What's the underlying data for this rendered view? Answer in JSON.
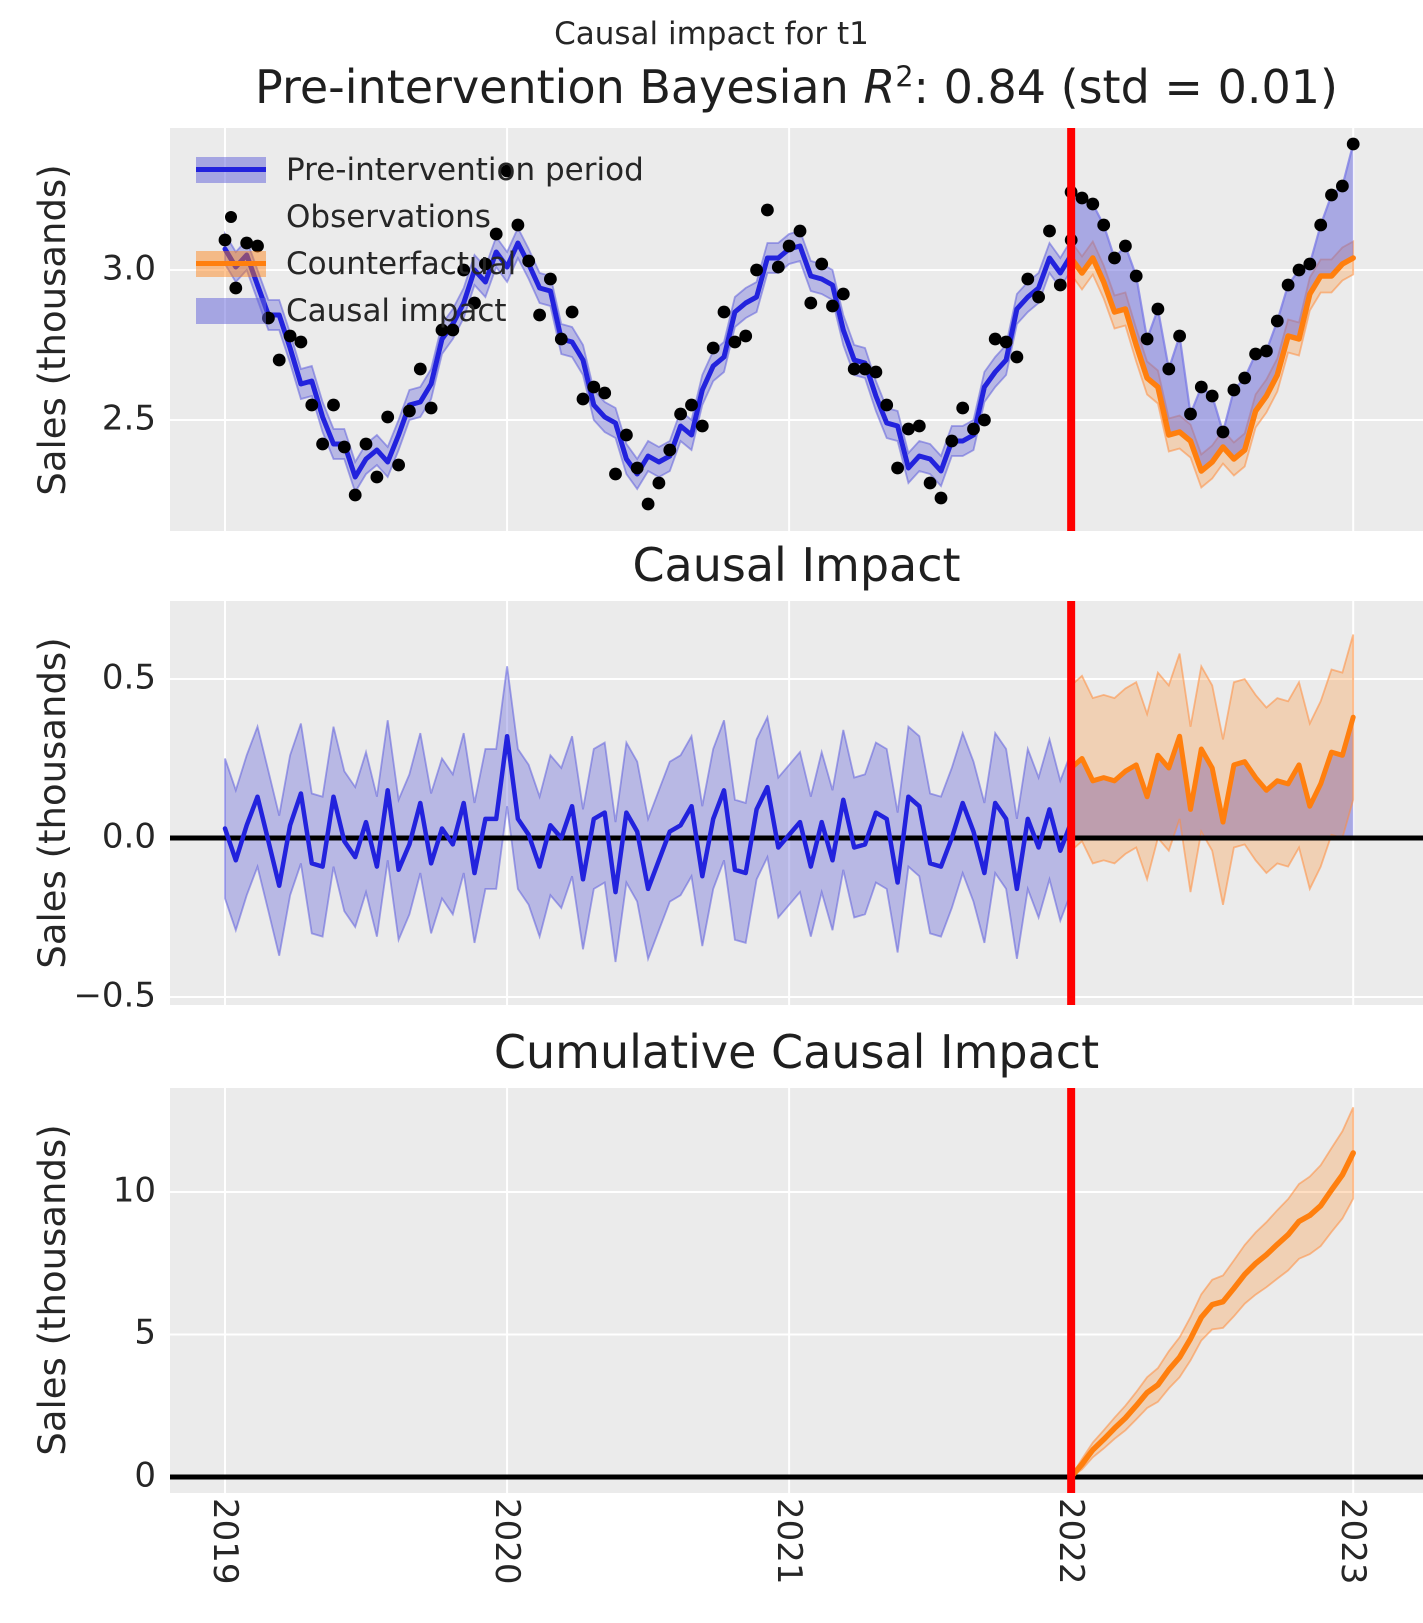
{
  "figure": {
    "suptitle": "Causal impact for t1",
    "title1": {
      "prefix": "Pre-intervention Bayesian ",
      "r_symbol": "R",
      "exponent": "2",
      "suffix": ": 0.84 (std = 0.01)"
    },
    "legend": {
      "items": [
        {
          "label": "Pre-intervention period",
          "type": "band-line",
          "color": "blue"
        },
        {
          "label": "Observations",
          "type": "dot",
          "color": "black"
        },
        {
          "label": "Counterfactual",
          "type": "band-line",
          "color": "orange"
        },
        {
          "label": "Causal impact",
          "type": "band",
          "color": "blue"
        }
      ]
    },
    "xticks": [
      {
        "label": "2019",
        "value": 2019
      },
      {
        "label": "2020",
        "value": 2020
      },
      {
        "label": "2021",
        "value": 2021
      },
      {
        "label": "2022",
        "value": 2022
      },
      {
        "label": "2023",
        "value": 2023
      }
    ],
    "colors": {
      "background": "#ebebeb",
      "grid": "#ffffff",
      "text": "#262626",
      "blue_line": "#2222dd",
      "blue_band": "rgba(102,102,219,0.38)",
      "blue_band_strong": "rgba(102,102,219,0.52)",
      "blue_edge": "rgba(95,95,220,0.55)",
      "orange_line": "#ff7f0e",
      "orange_band": "rgba(255,127,14,0.25)",
      "orange_edge": "rgba(255,140,60,0.55)",
      "observation": "#000000",
      "intervention_line": "#ff0000",
      "zero_line": "#000000"
    }
  },
  "chart_data": [
    {
      "type": "line",
      "title": "Pre-intervention Bayesian R2: 0.84 (std = 0.01)",
      "ylabel": "Sales (thousands)",
      "xlim": [
        2018.805,
        2023.248
      ],
      "ylim": [
        2.13,
        3.4733
      ],
      "grid": true,
      "legend_position": "upper left",
      "intervention_x": 2022.0,
      "yticks": [
        {
          "label": "3.0",
          "value": 3.0
        },
        {
          "label": "2.5",
          "value": 2.5
        }
      ],
      "x_pre": {
        "start": 2019,
        "step": 0.038462,
        "n": 79
      },
      "x_post": {
        "start": 2022,
        "step": 0.038462,
        "n": 27
      },
      "mean_pre": [
        3.07,
        3.01,
        3.05,
        2.95,
        2.85,
        2.85,
        2.74,
        2.62,
        2.63,
        2.51,
        2.42,
        2.42,
        2.31,
        2.37,
        2.4,
        2.36,
        2.45,
        2.55,
        2.56,
        2.62,
        2.77,
        2.82,
        2.89,
        3.0,
        2.96,
        3.06,
        3.01,
        3.09,
        3.02,
        2.94,
        2.93,
        2.77,
        2.76,
        2.7,
        2.55,
        2.51,
        2.49,
        2.37,
        2.32,
        2.38,
        2.36,
        2.38,
        2.48,
        2.45,
        2.6,
        2.68,
        2.71,
        2.86,
        2.89,
        2.91,
        3.04,
        3.04,
        3.07,
        3.08,
        2.98,
        2.97,
        2.95,
        2.8,
        2.7,
        2.69,
        2.58,
        2.49,
        2.48,
        2.34,
        2.38,
        2.37,
        2.33,
        2.43,
        2.43,
        2.45,
        2.61,
        2.66,
        2.7,
        2.87,
        2.91,
        2.94,
        3.04,
        2.99,
        3.05
      ],
      "mean_pre_hdi_half_width": 0.05,
      "obs_pre": [
        3.1,
        2.94,
        3.09,
        3.08,
        2.84,
        2.7,
        2.78,
        2.76,
        2.55,
        2.42,
        2.55,
        2.41,
        2.25,
        2.42,
        2.31,
        2.51,
        2.35,
        2.53,
        2.67,
        2.54,
        2.8,
        2.8,
        3.0,
        2.89,
        3.02,
        3.12,
        3.33,
        3.15,
        3.03,
        2.85,
        2.97,
        2.77,
        2.86,
        2.57,
        2.61,
        2.59,
        2.32,
        2.45,
        2.34,
        2.22,
        2.29,
        2.4,
        2.52,
        2.55,
        2.48,
        2.74,
        2.86,
        2.76,
        2.78,
        3.0,
        3.2,
        3.01,
        3.08,
        3.13,
        2.89,
        3.02,
        2.88,
        2.92,
        2.67,
        2.67,
        2.66,
        2.55,
        2.34,
        2.47,
        2.48,
        2.29,
        2.24,
        2.43,
        2.54,
        2.47,
        2.5,
        2.77,
        2.76,
        2.71,
        2.97,
        2.91,
        3.13,
        2.95,
        3.1
      ],
      "counterfactual": [
        3.04,
        2.99,
        3.04,
        2.96,
        2.86,
        2.87,
        2.75,
        2.64,
        2.61,
        2.45,
        2.46,
        2.43,
        2.33,
        2.36,
        2.41,
        2.37,
        2.4,
        2.53,
        2.58,
        2.65,
        2.78,
        2.77,
        2.92,
        2.98,
        2.98,
        3.02,
        3.04
      ],
      "counterfactual_hdi_half_width": 0.055,
      "obs_post": [
        3.26,
        3.24,
        3.22,
        3.15,
        3.04,
        3.08,
        2.98,
        2.77,
        2.87,
        2.67,
        2.78,
        2.52,
        2.61,
        2.58,
        2.46,
        2.6,
        2.64,
        2.72,
        2.73,
        2.83,
        2.95,
        3.0,
        3.02,
        3.15,
        3.25,
        3.28,
        3.42
      ]
    },
    {
      "type": "line",
      "title": "Causal Impact",
      "ylabel": "Sales (thousands)",
      "xlim": [
        2018.805,
        2023.248
      ],
      "ylim": [
        -0.525,
        0.7453
      ],
      "grid": true,
      "intervention_x": 2022.0,
      "zero_line": true,
      "yticks": [
        {
          "label": "0.5",
          "value": 0.5
        },
        {
          "label": "0.0",
          "value": 0.0
        },
        {
          "label": "−0.5",
          "value": -0.5
        }
      ],
      "x_pre": {
        "start": 2019,
        "step": 0.038462,
        "n": 79
      },
      "x_post": {
        "start": 2022,
        "step": 0.038462,
        "n": 27
      },
      "impact_pre": [
        0.03,
        -0.07,
        0.04,
        0.13,
        -0.01,
        -0.15,
        0.04,
        0.14,
        -0.08,
        -0.09,
        0.13,
        -0.01,
        -0.06,
        0.05,
        -0.09,
        0.15,
        -0.1,
        -0.02,
        0.11,
        -0.08,
        0.03,
        -0.02,
        0.11,
        -0.11,
        0.06,
        0.06,
        0.32,
        0.06,
        0.01,
        -0.09,
        0.04,
        0.0,
        0.1,
        -0.13,
        0.06,
        0.08,
        -0.17,
        0.08,
        0.02,
        -0.16,
        -0.07,
        0.02,
        0.04,
        0.1,
        -0.12,
        0.06,
        0.15,
        -0.1,
        -0.11,
        0.09,
        0.16,
        -0.03,
        0.01,
        0.05,
        -0.09,
        0.05,
        -0.07,
        0.12,
        -0.03,
        -0.02,
        0.08,
        0.06,
        -0.14,
        0.13,
        0.1,
        -0.08,
        -0.09,
        0.0,
        0.11,
        0.02,
        -0.11,
        0.11,
        0.06,
        -0.16,
        0.06,
        -0.03,
        0.09,
        -0.04,
        0.05
      ],
      "impact_pre_hdi_half_width": 0.22,
      "impact_post": [
        0.22,
        0.25,
        0.18,
        0.19,
        0.18,
        0.21,
        0.23,
        0.13,
        0.26,
        0.22,
        0.32,
        0.09,
        0.28,
        0.22,
        0.05,
        0.23,
        0.24,
        0.19,
        0.15,
        0.18,
        0.17,
        0.23,
        0.1,
        0.17,
        0.27,
        0.26,
        0.38
      ],
      "impact_post_hdi_half_width": 0.26
    },
    {
      "type": "line",
      "title": "Cumulative Causal Impact",
      "ylabel": "Sales (thousands)",
      "xlim": [
        2018.805,
        2023.248
      ],
      "ylim": [
        -0.561,
        13.649
      ],
      "grid": true,
      "intervention_x": 2022.0,
      "zero_line": true,
      "yticks": [
        {
          "label": "10",
          "value": 10
        },
        {
          "label": "5",
          "value": 5
        },
        {
          "label": "0",
          "value": 0
        }
      ],
      "x_post": {
        "start": 2022,
        "step": 0.038462,
        "n": 27
      },
      "cumulative": [
        0.0,
        0.45,
        0.95,
        1.32,
        1.71,
        2.07,
        2.5,
        2.96,
        3.23,
        3.76,
        4.2,
        4.85,
        5.6,
        6.05,
        6.15,
        6.62,
        7.11,
        7.49,
        7.8,
        8.16,
        8.5,
        8.97,
        9.18,
        9.52,
        10.07,
        10.6,
        11.37
      ],
      "cumulative_hdi_half_width": [
        0.02,
        0.18,
        0.26,
        0.32,
        0.37,
        0.43,
        0.48,
        0.54,
        0.59,
        0.65,
        0.7,
        0.76,
        0.81,
        0.87,
        0.92,
        0.98,
        1.03,
        1.09,
        1.14,
        1.2,
        1.25,
        1.31,
        1.36,
        1.42,
        1.47,
        1.53,
        1.6
      ]
    }
  ]
}
